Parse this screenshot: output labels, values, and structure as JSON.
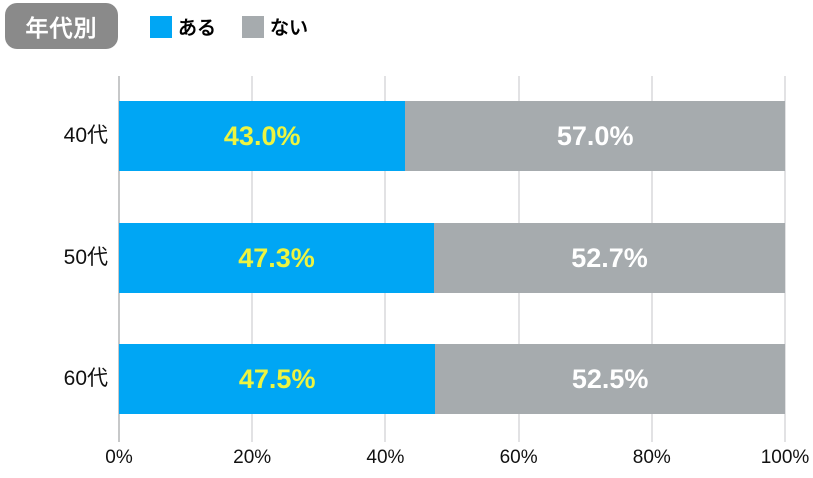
{
  "header": {
    "badge": "年代別"
  },
  "legend": [
    {
      "label": "ある",
      "color": "#00A6F4"
    },
    {
      "label": "ない",
      "color": "#A6ABAE"
    }
  ],
  "colors": {
    "blue_series": "#00A6F4",
    "gray_series": "#A6ABAE",
    "badge_bg": "#8A8A8A",
    "yellow_label": "#EDF441",
    "white_label": "#FFFFFF"
  },
  "chart_data": {
    "type": "bar",
    "orientation": "horizontal",
    "stacked": true,
    "title": "年代別",
    "categories": [
      "40代",
      "50代",
      "60代"
    ],
    "series": [
      {
        "name": "ある",
        "color": "#00A6F4",
        "values": [
          43.0,
          47.3,
          47.5
        ],
        "label_color": "#EDF441"
      },
      {
        "name": "ない",
        "color": "#A6ABAE",
        "values": [
          57.0,
          52.7,
          52.5
        ],
        "label_color": "#FFFFFF"
      }
    ],
    "value_labels": [
      [
        "43.0%",
        "57.0%"
      ],
      [
        "47.3%",
        "52.7%"
      ],
      [
        "47.5%",
        "52.5%"
      ]
    ],
    "x_ticks": [
      "0%",
      "20%",
      "40%",
      "60%",
      "80%",
      "100%"
    ],
    "xlim": [
      0,
      100
    ],
    "grid": "vertical-only",
    "legend_position": "top-left"
  }
}
